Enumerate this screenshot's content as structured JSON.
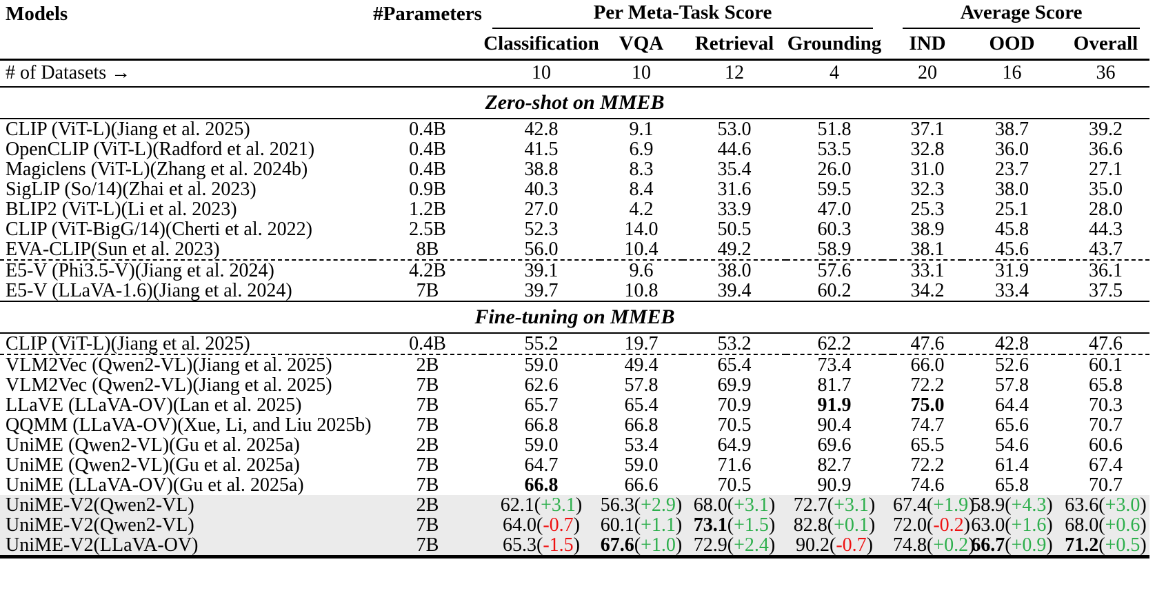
{
  "colors": {
    "positive": "#2daf4c",
    "negative": "#ee1111",
    "highlight_bg": "#ebebeb"
  },
  "header": {
    "models": "Models",
    "parameters": "#Parameters",
    "meta_group": "Per Meta-Task Score",
    "avg_group": "Average Score",
    "meta_cols": [
      "Classification",
      "VQA",
      "Retrieval",
      "Grounding"
    ],
    "avg_cols": [
      "IND",
      "OOD",
      "Overall"
    ]
  },
  "datasets_row": {
    "label": "# of Datasets →",
    "values": [
      "10",
      "10",
      "12",
      "4",
      "20",
      "16",
      "36"
    ]
  },
  "sections": [
    {
      "title": "Zero-shot on MMEB",
      "groups": [
        {
          "rows": [
            {
              "model": "CLIP (ViT-L)(Jiang et al. 2025)",
              "params": "0.4B",
              "cells": [
                "42.8",
                "9.1",
                "53.0",
                "51.8",
                "37.1",
                "38.7",
                "39.2"
              ]
            },
            {
              "model": "OpenCLIP (ViT-L)(Radford et al. 2021)",
              "params": "0.4B",
              "cells": [
                "41.5",
                "6.9",
                "44.6",
                "53.5",
                "32.8",
                "36.0",
                "36.6"
              ]
            },
            {
              "model": "Magiclens (ViT-L)(Zhang et al. 2024b)",
              "params": "0.4B",
              "cells": [
                "38.8",
                "8.3",
                "35.4",
                "26.0",
                "31.0",
                "23.7",
                "27.1"
              ]
            },
            {
              "model": "SigLIP (So/14)(Zhai et al. 2023)",
              "params": "0.9B",
              "cells": [
                "40.3",
                "8.4",
                "31.6",
                "59.5",
                "32.3",
                "38.0",
                "35.0"
              ]
            },
            {
              "model": "BLIP2 (ViT-L)(Li et al. 2023)",
              "params": "1.2B",
              "cells": [
                "27.0",
                "4.2",
                "33.9",
                "47.0",
                "25.3",
                "25.1",
                "28.0"
              ]
            },
            {
              "model": "CLIP (ViT-BigG/14)(Cherti et al. 2022)",
              "params": "2.5B",
              "cells": [
                "52.3",
                "14.0",
                "50.5",
                "60.3",
                "38.9",
                "45.8",
                "44.3"
              ]
            },
            {
              "model": "EVA-CLIP(Sun et al. 2023)",
              "params": "8B",
              "cells": [
                "56.0",
                "10.4",
                "49.2",
                "58.9",
                "38.1",
                "45.6",
                "43.7"
              ]
            }
          ]
        },
        {
          "rows": [
            {
              "model": "E5-V (Phi3.5-V)(Jiang et al. 2024)",
              "params": "4.2B",
              "cells": [
                "39.1",
                "9.6",
                "38.0",
                "57.6",
                "33.1",
                "31.9",
                "36.1"
              ]
            },
            {
              "model": "E5-V (LLaVA-1.6)(Jiang et al. 2024)",
              "params": "7B",
              "cells": [
                "39.7",
                "10.8",
                "39.4",
                "60.2",
                "34.2",
                "33.4",
                "37.5"
              ]
            }
          ]
        }
      ]
    },
    {
      "title": "Fine-tuning on MMEB",
      "groups": [
        {
          "rows": [
            {
              "model": "CLIP (ViT-L)(Jiang et al. 2025)",
              "params": "0.4B",
              "cells": [
                "55.2",
                "19.7",
                "53.2",
                "62.2",
                "47.6",
                "42.8",
                "47.6"
              ]
            }
          ]
        },
        {
          "rows": [
            {
              "model": "VLM2Vec (Qwen2-VL)(Jiang et al. 2025)",
              "params": "2B",
              "cells": [
                "59.0",
                "49.4",
                "65.4",
                "73.4",
                "66.0",
                "52.6",
                "60.1"
              ]
            },
            {
              "model": "VLM2Vec (Qwen2-VL)(Jiang et al. 2025)",
              "params": "7B",
              "cells": [
                "62.6",
                "57.8",
                "69.9",
                "81.7",
                "72.2",
                "57.8",
                "65.8"
              ]
            },
            {
              "model": "LLaVE (LLaVA-OV)(Lan et al. 2025)",
              "params": "7B",
              "cells": [
                "65.7",
                "65.4",
                "70.9",
                {
                  "v": "91.9",
                  "b": true
                },
                {
                  "v": "75.0",
                  "b": true
                },
                "64.4",
                "70.3"
              ]
            },
            {
              "model": "QQMM (LLaVA-OV)(Xue, Li, and Liu 2025b)",
              "params": "7B",
              "cells": [
                "66.8",
                "66.8",
                "70.5",
                "90.4",
                "74.7",
                "65.6",
                "70.7"
              ]
            },
            {
              "model": "UniME (Qwen2-VL)(Gu et al. 2025a)",
              "params": "2B",
              "cells": [
                "59.0",
                "53.4",
                "64.9",
                "69.6",
                "65.5",
                "54.6",
                "60.6"
              ]
            },
            {
              "model": "UniME (Qwen2-VL)(Gu et al. 2025a)",
              "params": "7B",
              "cells": [
                "64.7",
                "59.0",
                "71.6",
                "82.7",
                "72.2",
                "61.4",
                "67.4"
              ]
            },
            {
              "model": "UniME (LLaVA-OV)(Gu et al. 2025a)",
              "params": "7B",
              "cells": [
                {
                  "v": "66.8",
                  "b": true
                },
                "66.6",
                "70.5",
                "90.9",
                "74.6",
                "65.8",
                "70.7"
              ]
            },
            {
              "model": "UniME-V2(Qwen2-VL)",
              "params": "2B",
              "highlight": true,
              "cells": [
                {
                  "v": "62.1",
                  "d": "+3.1",
                  "dc": "green"
                },
                {
                  "v": "56.3",
                  "d": "+2.9",
                  "dc": "green"
                },
                {
                  "v": "68.0",
                  "d": "+3.1",
                  "dc": "green"
                },
                {
                  "v": "72.7",
                  "d": "+3.1",
                  "dc": "green"
                },
                {
                  "v": "67.4",
                  "d": "+1.9",
                  "dc": "green"
                },
                {
                  "v": "58.9",
                  "d": "+4.3",
                  "dc": "green"
                },
                {
                  "v": "63.6",
                  "d": "+3.0",
                  "dc": "green"
                }
              ]
            },
            {
              "model": "UniME-V2(Qwen2-VL)",
              "params": "7B",
              "highlight": true,
              "cells": [
                {
                  "v": "64.0",
                  "d": "-0.7",
                  "dc": "red"
                },
                {
                  "v": "60.1",
                  "d": "+1.1",
                  "dc": "green"
                },
                {
                  "v": "73.1",
                  "b": true,
                  "d": "+1.5",
                  "dc": "green"
                },
                {
                  "v": "82.8",
                  "d": "+0.1",
                  "dc": "green"
                },
                {
                  "v": "72.0",
                  "d": "-0.2",
                  "dc": "red"
                },
                {
                  "v": "63.0",
                  "d": "+1.6",
                  "dc": "green"
                },
                {
                  "v": "68.0",
                  "d": "+0.6",
                  "dc": "green"
                }
              ]
            },
            {
              "model": "UniME-V2(LLaVA-OV)",
              "params": "7B",
              "highlight": true,
              "cells": [
                {
                  "v": "65.3",
                  "d": "-1.5",
                  "dc": "red"
                },
                {
                  "v": "67.6",
                  "b": true,
                  "d": "+1.0",
                  "dc": "green"
                },
                {
                  "v": "72.9",
                  "d": "+2.4",
                  "dc": "green"
                },
                {
                  "v": "90.2",
                  "d": "-0.7",
                  "dc": "red"
                },
                {
                  "v": "74.8",
                  "d": "+0.2",
                  "dc": "green"
                },
                {
                  "v": "66.7",
                  "b": true,
                  "d": "+0.9",
                  "dc": "green"
                },
                {
                  "v": "71.2",
                  "b": true,
                  "d": "+0.5",
                  "dc": "green"
                }
              ]
            }
          ]
        }
      ]
    }
  ]
}
